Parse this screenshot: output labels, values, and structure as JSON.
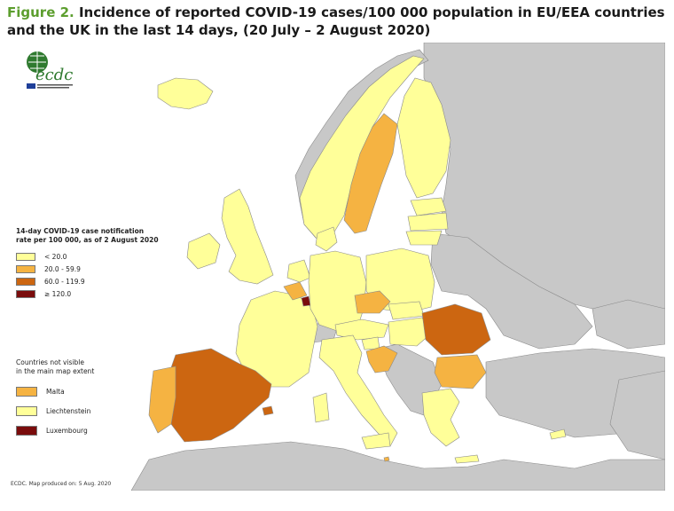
{
  "figure": {
    "label": "Figure 2.",
    "title": "Incidence of reported COVID-19 cases/100 000 population in EU/EEA countries and the UK in the last 14 days, (20 July – 2 August 2020)"
  },
  "logo": {
    "text": "ecdc"
  },
  "legend": {
    "title_line1": "14-day COVID-19 case notification",
    "title_line2": "rate per 100 000, as of 2 August 2020",
    "classes": [
      {
        "label": "< 20.0",
        "color": "#ffff99"
      },
      {
        "label": "20.0 - 59.9",
        "color": "#f5b342"
      },
      {
        "label": "60.0 - 119.9",
        "color": "#cc6611"
      },
      {
        "label": "≥ 120.0",
        "color": "#7a0c0c"
      }
    ]
  },
  "small_countries": {
    "title_line1": "Countries not visible",
    "title_line2": "in the main map extent",
    "items": [
      {
        "label": "Malta",
        "color": "#f5b342"
      },
      {
        "label": "Liechtenstein",
        "color": "#ffff99"
      },
      {
        "label": "Luxembourg",
        "color": "#7a0c0c"
      }
    ]
  },
  "credit": "ECDC. Map produced on: 5 Aug. 2020",
  "colors": {
    "sea": "#ffffff",
    "non_eu": "#c8c8c8",
    "border": "#8a8a8a"
  }
}
